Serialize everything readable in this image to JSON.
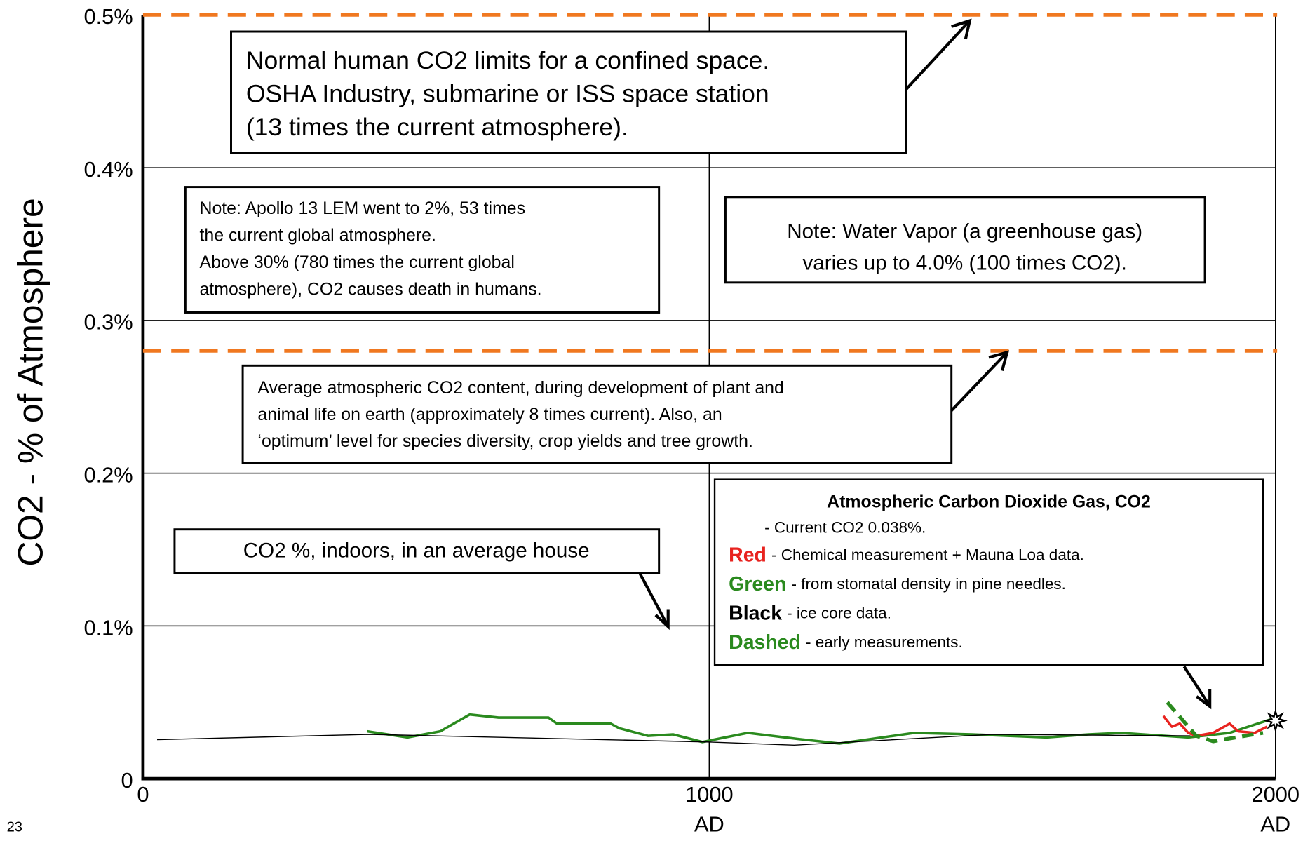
{
  "chart_data": {
    "type": "line",
    "ylabel": "CO2 - % of Atmosphere",
    "page_number": "23",
    "xlim": [
      0,
      2000
    ],
    "xticks": [
      0,
      {
        "value": 1000,
        "label": "1000\nAD"
      },
      {
        "value": 2000,
        "label": "2000\nAD"
      }
    ],
    "ylim": [
      0,
      0.5
    ],
    "yticks": [
      0,
      {
        "value": 0.1,
        "label": "0.1%"
      },
      {
        "value": 0.2,
        "label": "0.2%"
      },
      {
        "value": 0.3,
        "label": "0.3%"
      },
      {
        "value": 0.4,
        "label": "0.4%"
      },
      {
        "value": 0.5,
        "label": "0.5%"
      }
    ],
    "grid": true,
    "reference_lines": {
      "color": "#f07820",
      "values": [
        0.5,
        0.28
      ]
    },
    "series": [
      {
        "name": "Green",
        "description": "- from stomatal density in pine needles.",
        "color": "#2a8a1e",
        "dashed": false,
        "x": [
          396,
          467,
          525,
          577,
          628,
          716,
          731,
          826,
          841,
          892,
          936,
          988,
          1068,
          1156,
          1230,
          1362,
          1464,
          1596,
          1670,
          1728,
          1846,
          1919,
          1993
        ],
        "values": [
          0.031,
          0.027,
          0.031,
          0.042,
          0.04,
          0.04,
          0.036,
          0.036,
          0.033,
          0.028,
          0.029,
          0.024,
          0.03,
          0.026,
          0.023,
          0.03,
          0.029,
          0.027,
          0.029,
          0.03,
          0.027,
          0.03,
          0.039
        ]
      },
      {
        "name": "Black",
        "description": "-  ice core data.",
        "color": "#000000",
        "dashed": false,
        "x": [
          25,
          400,
          1000,
          1150,
          1500,
          1850
        ],
        "values": [
          0.0255,
          0.029,
          0.024,
          0.022,
          0.029,
          0.028
        ]
      },
      {
        "name": "Red",
        "description": "- Chemical measurement + Mauna Loa data.",
        "color": "#e8231f",
        "dashed": false,
        "x": [
          1802,
          1817,
          1831,
          1846,
          1860,
          1890,
          1919,
          1934,
          1963,
          1985
        ],
        "values": [
          0.041,
          0.034,
          0.036,
          0.03,
          0.028,
          0.03,
          0.036,
          0.031,
          0.03,
          0.034
        ]
      },
      {
        "name": "Dashed",
        "description": "- early measurements.",
        "color": "#2a8a1e",
        "dashed": true,
        "x": [
          1809,
          1860,
          1890,
          1978
        ],
        "values": [
          0.05,
          0.028,
          0.0245,
          0.03
        ]
      }
    ],
    "legend": {
      "title": "Atmospheric Carbon Dioxide Gas,  CO2",
      "subtitle": "- Current CO2  0.038%.",
      "order": [
        2,
        0,
        1,
        3
      ]
    },
    "current_marker": {
      "x": 2000,
      "value": 0.038
    },
    "annotations": [
      {
        "lines": [
          "Normal human CO2 limits for a confined space.",
          "OSHA Industry, submarine or ISS space station",
          "(13 times the current atmosphere)."
        ]
      },
      {
        "lines": [
          "Note: Apollo 13 LEM went to 2%, 53 times",
          "the current global atmosphere.",
          "Above 30% (780 times the current global",
          "atmosphere), CO2 causes death in humans."
        ]
      },
      {
        "lines": [
          "Note: Water Vapor (a greenhouse gas)",
          "varies up to 4.0% (100 times CO2)."
        ]
      },
      {
        "lines": [
          "Average atmospheric CO2 content, during development of plant and",
          "animal life on earth (approximately 8 times current).  Also, an",
          "‘optimum’ level for species diversity, crop yields and tree growth."
        ]
      },
      {
        "lines": [
          "CO2 %, indoors, in an average house"
        ]
      }
    ]
  }
}
